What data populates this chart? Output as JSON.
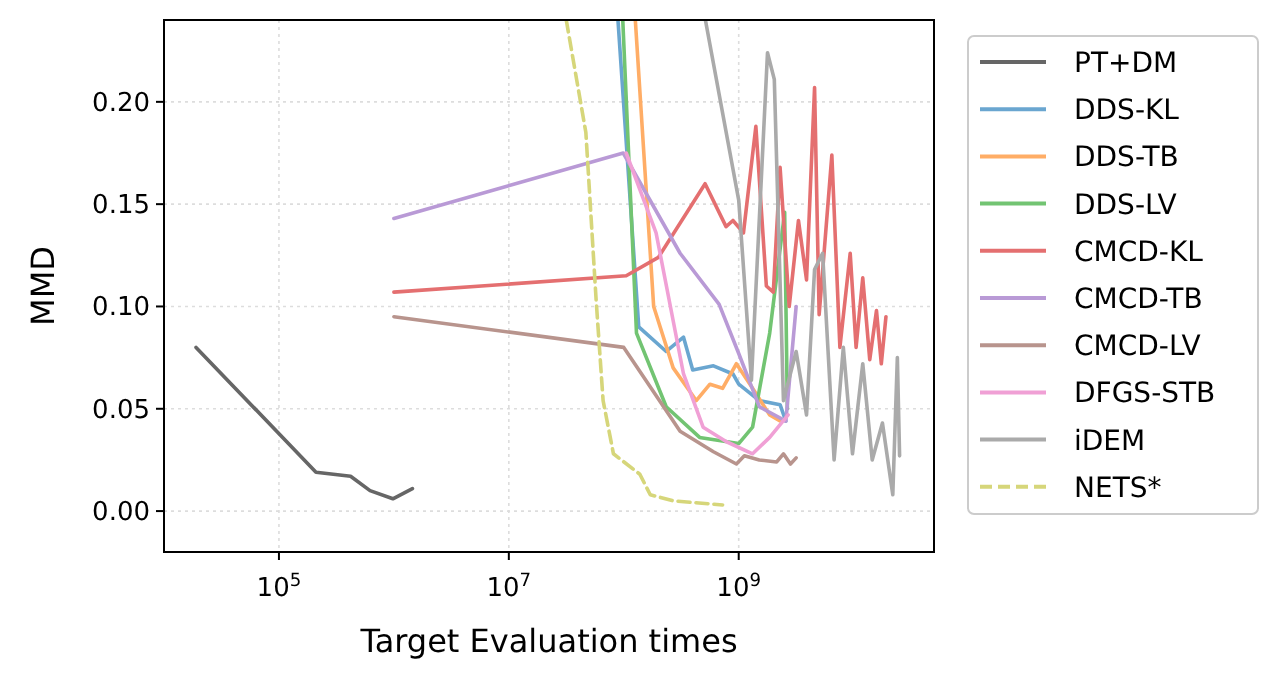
{
  "chart_data": {
    "type": "line",
    "xlabel": "Target Evaluation times",
    "ylabel": "MMD",
    "log": "x",
    "xlim": [
      10000,
      50000000000
    ],
    "ylim": [
      -0.02,
      0.24
    ],
    "xticks": [
      {
        "value": 100000,
        "label": "10$^{5}$"
      },
      {
        "value": 10000000,
        "label": "10$^{7}$"
      },
      {
        "value": 1000000000,
        "label": "10$^{9}$"
      }
    ],
    "yticks": [
      {
        "value": 0,
        "label": "0.00"
      },
      {
        "value": 0.05,
        "label": "0.05"
      },
      {
        "value": 0.1,
        "label": "0.10"
      },
      {
        "value": 0.15,
        "label": "0.15"
      },
      {
        "value": 0.2,
        "label": "0.20"
      }
    ],
    "grid": true,
    "legend": "right",
    "marker": "none",
    "series": [
      {
        "name": "PT+DM",
        "color": "#666666",
        "line_style": "solid",
        "x": [
          19000,
          210000,
          420000,
          620000,
          980000,
          1450000
        ],
        "values": [
          0.08,
          0.019,
          0.017,
          0.01,
          0.006,
          0.011
        ]
      },
      {
        "name": "DDS-KL",
        "color": "#6aa6d0",
        "line_style": "solid",
        "x": [
          89000000,
          135000000,
          234000000,
          331000000,
          398000000,
          603000000,
          891000000,
          1000000000,
          1510000000,
          2290000000,
          2570000000
        ],
        "values": [
          0.24,
          0.09,
          0.078,
          0.085,
          0.069,
          0.071,
          0.067,
          0.062,
          0.054,
          0.052,
          0.044
        ]
      },
      {
        "name": "DDS-TB",
        "color": "#ffad66",
        "line_style": "solid",
        "x": [
          126000000,
          182000000,
          269000000,
          427000000,
          562000000,
          724000000,
          955000000,
          1320000000,
          1860000000,
          2290000000
        ],
        "values": [
          0.24,
          0.1,
          0.07,
          0.054,
          0.062,
          0.06,
          0.072,
          0.06,
          0.047,
          0.044
        ]
      },
      {
        "name": "DDS-LV",
        "color": "#72c472",
        "line_style": "solid",
        "x": [
          98000000,
          129000000,
          234000000,
          457000000,
          1000000000,
          1320000000,
          1860000000,
          2510000000,
          2650000000
        ],
        "values": [
          0.24,
          0.087,
          0.051,
          0.036,
          0.033,
          0.041,
          0.087,
          0.146,
          0.05
        ]
      },
      {
        "name": "CMCD-KL",
        "color": "#e46f70",
        "line_style": "solid",
        "x": [
          1000000,
          105000000,
          200000000,
          510000000,
          776000000,
          891000000,
          1100000000,
          1410000000,
          1740000000,
          2000000000,
          2290000000,
          2750000000,
          3310000000,
          3890000000,
          4570000000,
          5010000000,
          6460000000,
          7590000000,
          9330000000,
          10500000000,
          12000000000,
          13800000000,
          15800000000,
          17400000000,
          19100000000
        ],
        "values": [
          0.107,
          0.115,
          0.124,
          0.16,
          0.139,
          0.142,
          0.136,
          0.188,
          0.11,
          0.107,
          0.168,
          0.1,
          0.142,
          0.113,
          0.207,
          0.096,
          0.174,
          0.08,
          0.126,
          0.08,
          0.114,
          0.074,
          0.098,
          0.072,
          0.095
        ]
      },
      {
        "name": "CMCD-TB",
        "color": "#b99ad6",
        "line_style": "solid",
        "x": [
          1000000,
          99000000,
          309000000,
          676000000,
          1000000000,
          1510000000,
          2570000000,
          3160000000
        ],
        "values": [
          0.143,
          0.175,
          0.126,
          0.101,
          0.077,
          0.051,
          0.044,
          0.1
        ]
      },
      {
        "name": "CMCD-LV",
        "color": "#b8948d",
        "line_style": "solid",
        "x": [
          1000000,
          100000000,
          309000000,
          603000000,
          955000000,
          1120000000,
          1510000000,
          2140000000,
          2450000000,
          2820000000,
          3160000000
        ],
        "values": [
          0.095,
          0.08,
          0.039,
          0.029,
          0.023,
          0.027,
          0.025,
          0.024,
          0.028,
          0.023,
          0.026
        ]
      },
      {
        "name": "DFGS-STB",
        "color": "#f0a0d5",
        "line_style": "solid",
        "x": [
          105000000,
          191000000,
          331000000,
          490000000,
          776000000,
          1320000000,
          1860000000,
          2690000000
        ],
        "values": [
          0.175,
          0.136,
          0.067,
          0.041,
          0.034,
          0.028,
          0.036,
          0.047
        ]
      },
      {
        "name": "iDEM",
        "color": "#aaaaaa",
        "line_style": "solid",
        "x": [
          513000000,
          1000000000,
          1290000000,
          1780000000,
          2040000000,
          2450000000,
          3160000000,
          3890000000,
          4570000000,
          5370000000,
          6760000000,
          8130000000,
          9770000000,
          12000000000,
          14500000000,
          17800000000,
          21900000000,
          24000000000,
          25100000000
        ],
        "values": [
          0.24,
          0.152,
          0.064,
          0.224,
          0.211,
          0.054,
          0.078,
          0.047,
          0.118,
          0.126,
          0.025,
          0.08,
          0.028,
          0.072,
          0.025,
          0.043,
          0.008,
          0.075,
          0.027
        ]
      },
      {
        "name": "NETS*",
        "color": "#d6d67a",
        "line_style": "dashed",
        "x": [
          31600000,
          46800000,
          57500000,
          66100000,
          81300000,
          138000000,
          170000000,
          269000000,
          724000000
        ],
        "values": [
          0.24,
          0.185,
          0.103,
          0.054,
          0.028,
          0.018,
          0.008,
          0.005,
          0.003
        ]
      }
    ]
  }
}
